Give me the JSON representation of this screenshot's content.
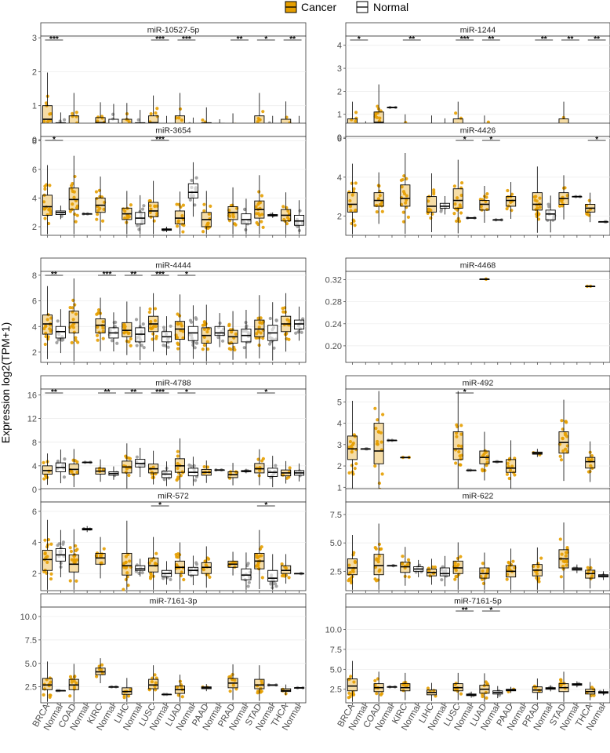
{
  "legend": {
    "items": [
      {
        "label": "Cancer",
        "color": "#E69F00"
      },
      {
        "label": "Normal",
        "color": "#FFFFFF"
      }
    ]
  },
  "y_axis_label": "Expression log2(TPM+1)",
  "x_tick_labels": [
    "BRCA",
    "Normal",
    "COAD",
    "Normal",
    "KIRC",
    "Normal",
    "LIHC",
    "Normal",
    "LUSC",
    "Normal",
    "LUAD",
    "Normal",
    "PAAD",
    "Normal",
    "PRAD",
    "Normal",
    "STAD",
    "Normal",
    "THCA",
    "Normal"
  ],
  "colors": {
    "cancer": "#E69F00",
    "normal_points": "#9a9a9a",
    "box_stroke": "#000000",
    "sig_bar": "#000000"
  },
  "chart_data": [
    {
      "type": "boxplot",
      "title": "miR-10527-5p",
      "ylim": [
        0,
        3.05
      ],
      "yticks": [
        0,
        1,
        2,
        3
      ],
      "grid": true,
      "boxes": [
        [
          0.35,
          0.6,
          1.0
        ],
        [
          0.3,
          0.38,
          0.5
        ],
        [
          0.25,
          0.42,
          0.7
        ],
        null,
        [
          0.35,
          0.5,
          0.65
        ],
        [
          0.3,
          0.45,
          0.6
        ],
        [
          0.28,
          0.42,
          0.6
        ],
        [
          0.25,
          0.35,
          0.5
        ],
        [
          0.3,
          0.5,
          0.7
        ],
        [
          0.2,
          0.3,
          0.4
        ],
        [
          0.25,
          0.45,
          0.7
        ],
        [
          0.15,
          0.25,
          0.35
        ],
        [
          0.2,
          0.35,
          0.5
        ],
        [
          0.4,
          0.45,
          0.48
        ],
        [
          0.15,
          0.28,
          0.4
        ],
        [
          0.15,
          0.2,
          0.25
        ],
        [
          0.25,
          0.45,
          0.7
        ],
        [
          0.2,
          0.3,
          0.4
        ],
        [
          0.25,
          0.4,
          0.6
        ],
        [
          0.2,
          0.3,
          0.4
        ]
      ],
      "significance": [
        {
          "pair": 1,
          "label": "***"
        },
        {
          "pair": 5,
          "label": "***"
        },
        {
          "pair": 6,
          "label": "***"
        },
        {
          "pair": 8,
          "label": "**"
        },
        {
          "pair": 9,
          "label": "*"
        },
        {
          "pair": 10,
          "label": "**"
        }
      ]
    },
    {
      "type": "boxplot",
      "title": "miR-1244",
      "ylim": [
        -0.1,
        4.4
      ],
      "yticks": [
        0,
        1,
        2,
        3,
        4
      ],
      "grid": true,
      "boxes": [
        [
          0.3,
          0.55,
          0.8
        ],
        [
          0.2,
          0.3,
          0.4
        ],
        [
          0.3,
          0.65,
          1.1
        ],
        [
          1.3,
          1.3,
          1.3
        ],
        [
          0.25,
          0.4,
          0.55
        ],
        [
          0.15,
          0.22,
          0.3
        ],
        [
          0.2,
          0.32,
          0.5
        ],
        [
          0.2,
          0.3,
          0.45
        ],
        [
          0.3,
          0.5,
          0.8
        ],
        [
          0.1,
          0.15,
          0.2
        ],
        [
          0.2,
          0.35,
          0.5
        ],
        [
          0.1,
          0.15,
          0.2
        ],
        [
          0.1,
          0.2,
          0.3
        ],
        null,
        [
          0.1,
          0.2,
          0.3
        ],
        [
          0.05,
          0.1,
          0.15
        ],
        [
          0.3,
          0.5,
          0.8
        ],
        [
          0.1,
          0.2,
          0.3
        ],
        [
          0.1,
          0.2,
          0.3
        ],
        [
          0.1,
          0.15,
          0.2
        ]
      ],
      "significance": [
        {
          "pair": 1,
          "label": "*"
        },
        {
          "pair": 3,
          "label": "**"
        },
        {
          "pair": 5,
          "label": "***"
        },
        {
          "pair": 6,
          "label": "**"
        },
        {
          "pair": 8,
          "label": "**"
        },
        {
          "pair": 9,
          "label": "**"
        },
        {
          "pair": 10,
          "label": "**"
        }
      ]
    },
    {
      "type": "boxplot",
      "title": "miR-3654",
      "ylim": [
        1.4,
        8.3
      ],
      "yticks": [
        2,
        4,
        6,
        8
      ],
      "grid": true,
      "boxes": [
        [
          2.8,
          3.4,
          4.2
        ],
        [
          2.85,
          3.0,
          3.1
        ],
        [
          3.2,
          3.9,
          4.7
        ],
        [
          2.9,
          2.9,
          2.9
        ],
        [
          3.0,
          3.5,
          4.0
        ],
        null,
        [
          2.5,
          2.9,
          3.3
        ],
        [
          2.2,
          2.6,
          3.0
        ],
        [
          2.7,
          3.1,
          3.7
        ],
        [
          1.75,
          1.8,
          1.85
        ],
        [
          2.2,
          2.6,
          3.1
        ],
        [
          4.0,
          4.4,
          5.0
        ],
        [
          2.0,
          2.5,
          3.0
        ],
        null,
        [
          2.5,
          3.0,
          3.4
        ],
        [
          2.2,
          2.5,
          2.9
        ],
        [
          2.6,
          3.2,
          3.8
        ],
        [
          2.75,
          2.8,
          2.85
        ],
        [
          2.4,
          2.8,
          3.2
        ],
        [
          2.1,
          2.4,
          2.8
        ]
      ],
      "significance": [
        {
          "pair": 1,
          "label": "*"
        },
        {
          "pair": 5,
          "label": "***"
        }
      ]
    },
    {
      "type": "boxplot",
      "title": "miR-4426",
      "ylim": [
        1.0,
        6.1
      ],
      "yticks": [
        2,
        4,
        6
      ],
      "grid": true,
      "boxes": [
        [
          2.2,
          2.6,
          3.2
        ],
        null,
        [
          2.5,
          2.8,
          3.2
        ],
        null,
        [
          2.5,
          2.9,
          3.6
        ],
        null,
        [
          2.2,
          2.5,
          3.0
        ],
        [
          2.4,
          2.5,
          2.65
        ],
        [
          2.4,
          2.8,
          3.4
        ],
        [
          1.9,
          1.9,
          1.9
        ],
        [
          2.3,
          2.6,
          2.8
        ],
        [
          1.8,
          1.8,
          1.8
        ],
        [
          2.5,
          2.8,
          3.0
        ],
        null,
        [
          2.3,
          2.6,
          3.2
        ],
        [
          1.8,
          2.1,
          2.3
        ],
        [
          2.6,
          2.9,
          3.2
        ],
        [
          3.0,
          3.0,
          3.0
        ],
        [
          2.2,
          2.4,
          2.6
        ],
        [
          1.7,
          1.7,
          1.7
        ]
      ],
      "significance": [
        {
          "pair": 5,
          "label": "*"
        },
        {
          "pair": 6,
          "label": "*"
        },
        {
          "pair": 10,
          "label": "*"
        }
      ]
    },
    {
      "type": "boxplot",
      "title": "miR-4444",
      "ylim": [
        1.2,
        8.3
      ],
      "yticks": [
        2,
        4,
        6,
        8
      ],
      "grid": true,
      "boxes": [
        [
          3.4,
          4.2,
          4.9
        ],
        [
          3.1,
          3.6,
          4.0
        ],
        [
          3.5,
          4.3,
          5.2
        ],
        null,
        [
          3.5,
          4.1,
          4.6
        ],
        [
          3.1,
          3.5,
          3.9
        ],
        [
          3.2,
          3.7,
          4.3
        ],
        [
          2.8,
          3.4,
          3.9
        ],
        [
          3.6,
          4.2,
          4.8
        ],
        [
          2.8,
          3.2,
          3.6
        ],
        [
          3.0,
          3.8,
          4.4
        ],
        [
          2.9,
          3.5,
          4.0
        ],
        [
          2.7,
          3.3,
          3.9
        ],
        [
          3.3,
          3.5,
          4.0
        ],
        [
          2.7,
          3.2,
          3.7
        ],
        [
          2.8,
          3.3,
          3.8
        ],
        [
          3.2,
          3.8,
          4.5
        ],
        [
          2.9,
          3.5,
          4.1
        ],
        [
          3.6,
          4.2,
          4.8
        ],
        [
          3.8,
          4.2,
          4.5
        ]
      ],
      "significance": [
        {
          "pair": 1,
          "label": "**"
        },
        {
          "pair": 3,
          "label": "***"
        },
        {
          "pair": 4,
          "label": "**"
        },
        {
          "pair": 5,
          "label": "***"
        },
        {
          "pair": 6,
          "label": "*"
        }
      ]
    },
    {
      "type": "boxplot",
      "title": "miR-4468",
      "ylim": [
        0.17,
        0.335
      ],
      "yticks": [
        0.2,
        0.24,
        0.28,
        0.32
      ],
      "grid": true,
      "boxes": [
        null,
        null,
        null,
        null,
        null,
        null,
        null,
        null,
        null,
        null,
        [
          0.321,
          0.321,
          0.321
        ],
        null,
        null,
        null,
        null,
        null,
        null,
        null,
        [
          0.308,
          0.308,
          0.308
        ],
        null
      ],
      "significance": []
    },
    {
      "type": "boxplot",
      "title": "miR-4788",
      "ylim": [
        0,
        17
      ],
      "yticks": [
        0,
        4,
        8,
        12,
        16
      ],
      "grid": true,
      "boxes": [
        [
          2.6,
          3.2,
          4.0
        ],
        [
          3.0,
          3.7,
          4.5
        ],
        [
          2.6,
          3.4,
          4.3
        ],
        [
          4.6,
          4.6,
          4.6
        ],
        [
          2.6,
          3.1,
          3.6
        ],
        [
          2.4,
          2.7,
          3.0
        ],
        [
          2.8,
          3.8,
          4.8
        ],
        [
          3.8,
          4.4,
          5.1
        ],
        [
          2.8,
          3.5,
          4.3
        ],
        [
          2.0,
          2.6,
          3.1
        ],
        [
          2.9,
          4.0,
          5.2
        ],
        [
          2.3,
          2.9,
          3.6
        ],
        [
          2.4,
          2.9,
          3.4
        ],
        [
          3.3,
          3.3,
          3.3
        ],
        [
          2.0,
          2.5,
          3.0
        ],
        [
          3.0,
          3.1,
          3.2
        ],
        [
          2.8,
          3.5,
          4.4
        ],
        [
          2.2,
          2.9,
          3.6
        ],
        [
          2.3,
          2.8,
          3.3
        ],
        [
          2.4,
          2.8,
          3.2
        ]
      ],
      "significance": [
        {
          "pair": 1,
          "label": "**"
        },
        {
          "pair": 3,
          "label": "**"
        },
        {
          "pair": 4,
          "label": "**"
        },
        {
          "pair": 5,
          "label": "***"
        },
        {
          "pair": 6,
          "label": "*"
        },
        {
          "pair": 9,
          "label": "*"
        }
      ]
    },
    {
      "type": "boxplot",
      "title": "miR-492",
      "ylim": [
        0.9,
        5.6
      ],
      "yticks": [
        1,
        2,
        3,
        4,
        5
      ],
      "grid": true,
      "boxes": [
        [
          2.3,
          2.8,
          3.4
        ],
        [
          2.8,
          2.8,
          2.8
        ],
        [
          2.1,
          2.7,
          4.0
        ],
        [
          3.2,
          3.2,
          3.2
        ],
        [
          2.4,
          2.4,
          2.4
        ],
        null,
        null,
        null,
        [
          2.3,
          2.8,
          3.6
        ],
        [
          1.8,
          1.8,
          1.8
        ],
        [
          2.1,
          2.4,
          2.7
        ],
        [
          2.2,
          2.2,
          2.2
        ],
        [
          1.7,
          1.9,
          2.3
        ],
        null,
        [
          2.55,
          2.6,
          2.65
        ],
        null,
        [
          2.6,
          3.1,
          3.6
        ],
        null,
        [
          1.9,
          2.2,
          2.4
        ],
        null
      ],
      "significance": [
        {
          "pair": 5,
          "label": "*"
        }
      ]
    },
    {
      "type": "boxplot",
      "title": "miR-572",
      "ylim": [
        0.9,
        6.6
      ],
      "yticks": [
        2,
        4,
        6
      ],
      "grid": true,
      "boxes": [
        [
          2.2,
          2.9,
          3.5
        ],
        [
          2.8,
          3.2,
          3.6
        ],
        [
          2.1,
          2.6,
          3.2
        ],
        [
          4.8,
          4.85,
          4.9
        ],
        [
          2.6,
          3.0,
          3.3
        ],
        null,
        [
          1.9,
          2.5,
          3.3
        ],
        [
          2.2,
          2.3,
          2.5
        ],
        [
          2.1,
          2.5,
          3.0
        ],
        [
          1.8,
          2.0,
          2.2
        ],
        [
          2.0,
          2.4,
          2.8
        ],
        [
          1.9,
          2.2,
          2.4
        ],
        [
          2.0,
          2.4,
          2.7
        ],
        null,
        [
          2.4,
          2.6,
          2.8
        ],
        [
          1.6,
          1.9,
          2.3
        ],
        [
          2.3,
          2.8,
          3.3
        ],
        [
          1.5,
          1.7,
          2.2
        ],
        [
          2.0,
          2.2,
          2.5
        ],
        [
          2.0,
          2.0,
          2.0
        ]
      ],
      "significance": [
        {
          "pair": 5,
          "label": "*"
        },
        {
          "pair": 9,
          "label": "*"
        }
      ]
    },
    {
      "type": "boxplot",
      "title": "miR-622",
      "ylim": [
        0.8,
        8.6
      ],
      "yticks": [
        2.5,
        5.0,
        7.5
      ],
      "grid": true,
      "boxes": [
        [
          2.2,
          2.8,
          3.6
        ],
        null,
        [
          2.2,
          3.0,
          4.0
        ],
        [
          3.0,
          3.0,
          3.0
        ],
        [
          2.4,
          2.9,
          3.3
        ],
        [
          2.5,
          2.7,
          2.9
        ],
        [
          2.1,
          2.4,
          2.7
        ],
        [
          2.1,
          2.3,
          2.8
        ],
        [
          2.3,
          2.8,
          3.4
        ],
        null,
        [
          1.9,
          2.3,
          2.8
        ],
        null,
        [
          2.0,
          2.5,
          3.0
        ],
        null,
        [
          2.1,
          2.6,
          3.1
        ],
        null,
        [
          2.8,
          3.6,
          4.4
        ],
        [
          2.6,
          2.7,
          2.8
        ],
        [
          1.9,
          2.3,
          2.6
        ],
        [
          2.0,
          2.1,
          2.2
        ]
      ],
      "significance": []
    },
    {
      "type": "boxplot",
      "title": "miR-7161-3p",
      "ylim": [
        0.8,
        11.0
      ],
      "yticks": [
        2.5,
        5.0,
        7.5,
        10.0
      ],
      "grid": true,
      "boxes": [
        [
          2.2,
          2.7,
          3.4
        ],
        [
          2.1,
          2.1,
          2.1
        ],
        [
          2.2,
          2.7,
          3.3
        ],
        null,
        [
          3.8,
          4.1,
          4.5
        ],
        [
          2.5,
          2.5,
          2.5
        ],
        [
          1.7,
          2.0,
          2.4
        ],
        null,
        [
          2.3,
          2.7,
          3.3
        ],
        [
          1.7,
          1.7,
          1.7
        ],
        [
          1.8,
          2.2,
          2.6
        ],
        null,
        [
          2.3,
          2.4,
          2.5
        ],
        null,
        [
          2.4,
          2.9,
          3.4
        ],
        null,
        [
          2.3,
          2.7,
          3.3
        ],
        [
          2.7,
          2.7,
          2.7
        ],
        [
          2.0,
          2.1,
          2.3
        ],
        [
          2.4,
          2.4,
          2.4
        ]
      ],
      "significance": []
    },
    {
      "type": "boxplot",
      "title": "miR-7161-5p",
      "ylim": [
        0.8,
        12.8
      ],
      "yticks": [
        2.5,
        5.0,
        7.5,
        10.0
      ],
      "grid": true,
      "boxes": [
        [
          2.3,
          2.9,
          3.8
        ],
        null,
        [
          2.2,
          2.7,
          3.2
        ],
        [
          2.8,
          2.8,
          2.8
        ],
        [
          2.3,
          2.7,
          3.2
        ],
        null,
        [
          1.8,
          2.1,
          2.4
        ],
        null,
        [
          2.3,
          2.7,
          3.2
        ],
        [
          1.7,
          1.8,
          1.9
        ],
        [
          2.0,
          2.5,
          3.0
        ],
        [
          1.9,
          2.1,
          2.3
        ],
        [
          2.3,
          2.4,
          2.5
        ],
        null,
        [
          2.1,
          2.4,
          2.8
        ],
        [
          2.5,
          2.6,
          2.7
        ],
        [
          2.2,
          2.7,
          3.2
        ],
        [
          3.0,
          3.1,
          3.2
        ],
        [
          1.9,
          2.2,
          2.5
        ],
        [
          2.0,
          2.1,
          2.2
        ]
      ],
      "significance": [
        {
          "pair": 5,
          "label": "**"
        },
        {
          "pair": 6,
          "label": "*"
        }
      ]
    }
  ]
}
